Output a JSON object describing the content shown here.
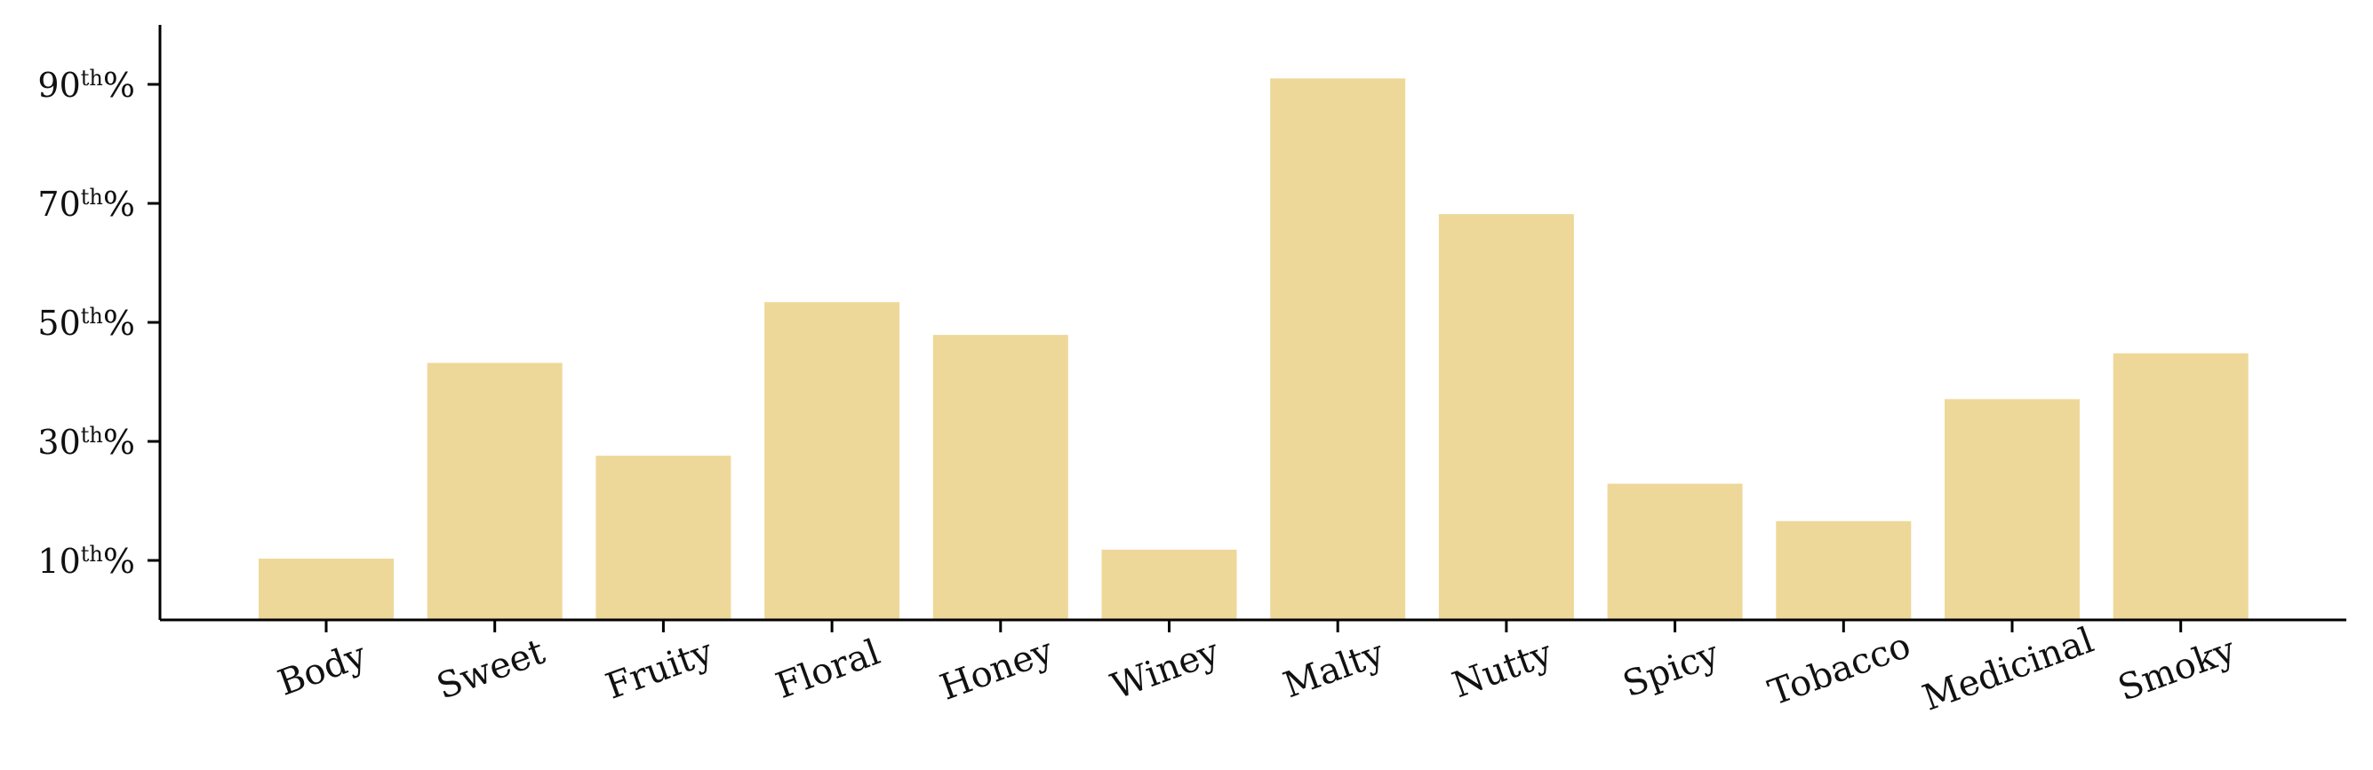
{
  "chart_data": {
    "type": "bar",
    "title": "",
    "xlabel": "",
    "ylabel": "",
    "categories": [
      "Body",
      "Sweet",
      "Fruity",
      "Floral",
      "Honey",
      "Winey",
      "Malty",
      "Nutty",
      "Spicy",
      "Tobacco",
      "Medicinal",
      "Smoky"
    ],
    "values": [
      10.3,
      43.2,
      27.6,
      53.4,
      47.9,
      11.8,
      91.0,
      68.2,
      22.9,
      16.6,
      37.1,
      44.8
    ],
    "ylim": [
      0,
      100
    ],
    "yticks": [
      {
        "value": 10,
        "label_main": "10",
        "label_sup": "th",
        "label_suffix": "%"
      },
      {
        "value": 30,
        "label_main": "30",
        "label_sup": "th",
        "label_suffix": "%"
      },
      {
        "value": 50,
        "label_main": "50",
        "label_sup": "th",
        "label_suffix": "%"
      },
      {
        "value": 70,
        "label_main": "70",
        "label_sup": "th",
        "label_suffix": "%"
      },
      {
        "value": 90,
        "label_main": "90",
        "label_sup": "th",
        "label_suffix": "%"
      }
    ],
    "bar_color": "#eed899",
    "axis_color": "#000000",
    "grid": false,
    "legend": "none",
    "xtick_rotation": "tilted"
  }
}
